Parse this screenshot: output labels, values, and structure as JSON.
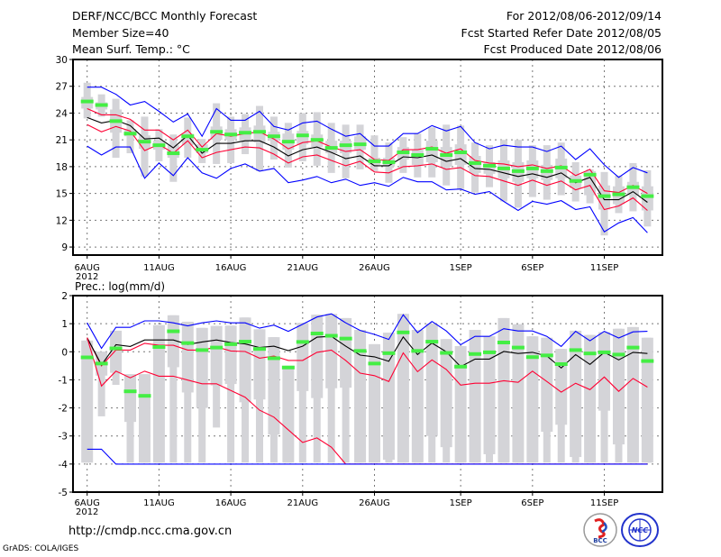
{
  "header": {
    "title": "DERF/NCC/BCC Monthly Forecast",
    "member_size": "Member Size=40",
    "variable": "Mean Surf. Temp.: °C",
    "period": "For 2012/08/06-2012/09/14",
    "started": "Fcst Started Refer Date 2012/08/05",
    "produced": "Fcst Produced Date 2012/08/06"
  },
  "footer": {
    "url": "http://cmdp.ncc.cma.gov.cn",
    "credit": "GrADS: COLA/IGES",
    "logos": [
      "BCC",
      "NCC"
    ]
  },
  "colors": {
    "max_min": "#0000ff",
    "spread": "#ff0033",
    "mean": "#000000",
    "marker": "#44ee44",
    "box": "#d4d4d8",
    "grid": "#777777"
  },
  "chart_data": [
    {
      "type": "line",
      "title": "Mean Surf. Temp.: °C",
      "ylim": [
        8.1,
        30
      ],
      "yticks": [
        "9",
        "12",
        "15",
        "18",
        "21",
        "24",
        "27",
        "30"
      ],
      "xticks": [
        {
          "day": 0,
          "label": "6AUG"
        },
        {
          "day": 5,
          "label": "11AUG"
        },
        {
          "day": 10,
          "label": "16AUG"
        },
        {
          "day": 15,
          "label": "21AUG"
        },
        {
          "day": 20,
          "label": "26AUG"
        },
        {
          "day": 26,
          "label": "1SEP"
        },
        {
          "day": 31,
          "label": "6SEP"
        },
        {
          "day": 36,
          "label": "11SEP"
        }
      ],
      "year_label": "2012",
      "grid": true,
      "series": [
        {
          "name": "max",
          "color": "#0000ff",
          "values": [
            26.9,
            26.9,
            26.1,
            24.9,
            25.3,
            24.2,
            23.0,
            23.9,
            21.4,
            24.5,
            23.2,
            23.2,
            24.2,
            22.5,
            22.1,
            22.9,
            23.1,
            22.2,
            21.4,
            21.7,
            20.3,
            20.3,
            21.7,
            21.7,
            22.6,
            22.0,
            22.5,
            20.7,
            20.0,
            20.4,
            20.2,
            20.2,
            19.7,
            20.3,
            18.8,
            20.0,
            18.2,
            16.8,
            17.9,
            17.3
          ]
        },
        {
          "name": "upper",
          "color": "#ff0033",
          "values": [
            24.5,
            23.8,
            23.8,
            23.3,
            22.1,
            22.1,
            21.0,
            22.1,
            20.2,
            21.7,
            21.4,
            21.7,
            21.9,
            21.1,
            20.0,
            20.7,
            20.9,
            20.2,
            19.7,
            19.9,
            18.8,
            18.7,
            19.9,
            19.9,
            20.2,
            19.5,
            20.0,
            18.7,
            18.4,
            18.3,
            18.0,
            18.2,
            17.8,
            18.1,
            17.0,
            17.7,
            15.3,
            15.1,
            15.9,
            15.0
          ]
        },
        {
          "name": "mean",
          "color": "#000000",
          "values": [
            23.5,
            22.9,
            23.2,
            22.6,
            21.1,
            21.2,
            20.1,
            21.5,
            19.5,
            20.6,
            20.6,
            20.9,
            20.9,
            20.2,
            19.2,
            19.9,
            20.2,
            19.6,
            18.9,
            19.2,
            18.1,
            18.1,
            19.1,
            19.0,
            19.3,
            18.6,
            18.9,
            17.8,
            17.7,
            17.3,
            16.9,
            17.2,
            16.8,
            17.3,
            16.2,
            16.8,
            14.3,
            14.3,
            15.2,
            14.0
          ]
        },
        {
          "name": "lower",
          "color": "#ff0033",
          "values": [
            22.7,
            21.9,
            22.5,
            22.0,
            19.8,
            20.5,
            19.5,
            20.9,
            19.0,
            19.6,
            19.9,
            20.2,
            20.1,
            19.4,
            18.4,
            19.1,
            19.3,
            18.7,
            18.1,
            18.6,
            17.4,
            17.3,
            18.0,
            18.1,
            18.3,
            17.7,
            17.9,
            17.0,
            16.9,
            16.4,
            15.9,
            16.5,
            15.9,
            16.4,
            15.4,
            15.9,
            13.2,
            13.6,
            14.5,
            13.1
          ]
        },
        {
          "name": "min",
          "color": "#0000ff",
          "values": [
            20.3,
            19.3,
            20.2,
            20.2,
            16.7,
            18.4,
            17.0,
            19.0,
            17.3,
            16.7,
            17.8,
            18.3,
            17.5,
            17.8,
            16.2,
            16.5,
            16.9,
            16.2,
            16.6,
            15.9,
            16.2,
            15.8,
            16.8,
            16.3,
            16.3,
            15.4,
            15.5,
            14.9,
            15.2,
            14.1,
            13.1,
            14.1,
            13.8,
            14.2,
            13.2,
            13.5,
            10.7,
            11.7,
            12.3,
            10.6
          ]
        }
      ],
      "markers": [
        25.3,
        24.9,
        23.1,
        21.7,
        20.8,
        20.4,
        19.5,
        21.4,
        19.9,
        21.9,
        21.6,
        21.8,
        21.9,
        21.4,
        20.8,
        21.5,
        21.0,
        20.1,
        20.4,
        20.5,
        18.6,
        18.5,
        19.6,
        19.3,
        20.0,
        19.3,
        19.6,
        18.4,
        18.1,
        17.8,
        17.5,
        17.8,
        17.5,
        17.9,
        16.4,
        17.1,
        14.7,
        14.9,
        15.7,
        14.7
      ],
      "boxes": [
        [
          27.4,
          25.8,
          24.5,
          23.4
        ],
        [
          26.1,
          25.2,
          24.4,
          23.6
        ],
        [
          25.6,
          24.4,
          21.8,
          19.0
        ],
        [
          23.2,
          22.2,
          21.4,
          19.5
        ],
        [
          23.6,
          21.5,
          20.0,
          16.9
        ],
        [
          22.2,
          20.9,
          19.9,
          18.6
        ],
        [
          21.6,
          20.4,
          19.0,
          16.3
        ],
        [
          23.5,
          21.7,
          20.4,
          19.0
        ],
        [
          21.1,
          20.5,
          19.5,
          18.4
        ],
        [
          25.1,
          22.5,
          21.0,
          18.3
        ],
        [
          23.6,
          22.2,
          21.0,
          18.4
        ],
        [
          23.9,
          22.4,
          20.9,
          19.4
        ],
        [
          24.8,
          22.6,
          20.7,
          17.5
        ],
        [
          23.6,
          21.9,
          20.9,
          18.8
        ],
        [
          22.9,
          21.7,
          19.9,
          17.9
        ],
        [
          24.0,
          22.0,
          20.5,
          18.6
        ],
        [
          24.1,
          21.6,
          20.2,
          18.1
        ],
        [
          22.9,
          20.9,
          19.5,
          17.3
        ],
        [
          22.7,
          20.9,
          19.5,
          16.7
        ],
        [
          22.7,
          21.4,
          19.9,
          17.7
        ],
        [
          21.5,
          19.0,
          18.2,
          17.5
        ],
        [
          20.7,
          19.0,
          18.0,
          16.2
        ],
        [
          21.3,
          20.2,
          18.8,
          17.3
        ],
        [
          21.7,
          19.9,
          18.2,
          16.8
        ],
        [
          22.4,
          20.9,
          18.5,
          16.8
        ],
        [
          22.7,
          20.2,
          18.0,
          15.9
        ],
        [
          22.6,
          20.5,
          18.2,
          15.5
        ],
        [
          20.7,
          19.2,
          17.3,
          15.1
        ],
        [
          20.4,
          18.5,
          17.2,
          15.7
        ],
        [
          21.0,
          18.7,
          16.7,
          14.1
        ],
        [
          21.0,
          18.5,
          16.3,
          13.4
        ],
        [
          20.4,
          18.7,
          16.7,
          14.6
        ],
        [
          20.4,
          18.2,
          16.5,
          14.3
        ],
        [
          20.7,
          18.9,
          16.7,
          14.8
        ],
        [
          18.5,
          17.0,
          15.6,
          14.1
        ],
        [
          17.7,
          17.5,
          14.8,
          13.9
        ],
        [
          17.4,
          15.9,
          13.2,
          10.3
        ],
        [
          17.0,
          15.8,
          13.8,
          12.8
        ],
        [
          18.4,
          16.3,
          14.8,
          13.0
        ],
        [
          17.6,
          15.8,
          13.1,
          11.3
        ]
      ]
    },
    {
      "type": "line",
      "title": "Prec.: log(mm/d)",
      "ylim": [
        -5,
        2
      ],
      "yticks": [
        "-5",
        "-4",
        "-3",
        "-2",
        "-1",
        "0",
        "1",
        "2"
      ],
      "xticks": [
        {
          "day": 0,
          "label": "6AUG"
        },
        {
          "day": 5,
          "label": "11AUG"
        },
        {
          "day": 10,
          "label": "16AUG"
        },
        {
          "day": 15,
          "label": "21AUG"
        },
        {
          "day": 20,
          "label": "26AUG"
        },
        {
          "day": 26,
          "label": "1SEP"
        },
        {
          "day": 31,
          "label": "6SEP"
        },
        {
          "day": 36,
          "label": "11SEP"
        }
      ],
      "year_label": "2012",
      "grid": true,
      "series": [
        {
          "name": "max",
          "color": "#0000ff",
          "values": [
            1.03,
            0.12,
            0.87,
            0.87,
            1.1,
            1.1,
            1.03,
            0.92,
            1.03,
            1.1,
            1.03,
            1.03,
            0.84,
            0.95,
            0.73,
            0.98,
            1.24,
            1.35,
            1.03,
            0.76,
            0.62,
            0.44,
            1.32,
            0.68,
            1.08,
            0.74,
            0.25,
            0.55,
            0.55,
            0.82,
            0.74,
            0.74,
            0.55,
            0.19,
            0.73,
            0.39,
            0.73,
            0.49,
            0.71,
            0.73
          ]
        },
        {
          "name": "upper",
          "color": "#ff0033",
          "values": [
            0.5,
            -0.5,
            0.06,
            0.06,
            0.3,
            0.23,
            0.23,
            0.06,
            0.06,
            0.17,
            0.03,
            0.01,
            -0.23,
            -0.15,
            -0.31,
            -0.31,
            -0.02,
            0.06,
            -0.31,
            -0.76,
            -0.85,
            -1.06,
            -0.04,
            -0.71,
            -0.29,
            -0.63,
            -1.19,
            -1.12,
            -1.12,
            -1.03,
            -1.09,
            -0.69,
            -1.06,
            -1.44,
            -1.12,
            -1.35,
            -0.9,
            -1.41,
            -0.95,
            -1.26
          ]
        },
        {
          "name": "mean",
          "color": "#000000",
          "values": [
            0.5,
            -0.47,
            0.25,
            0.19,
            0.42,
            0.42,
            0.42,
            0.26,
            0.35,
            0.42,
            0.33,
            0.28,
            0.15,
            0.2,
            0.04,
            0.2,
            0.52,
            0.55,
            0.2,
            -0.12,
            -0.18,
            -0.34,
            0.53,
            -0.1,
            0.31,
            0.0,
            -0.53,
            -0.26,
            -0.26,
            0.01,
            -0.06,
            -0.02,
            -0.15,
            -0.58,
            -0.1,
            -0.45,
            -0.02,
            -0.29,
            -0.02,
            -0.06
          ]
        },
        {
          "name": "lower",
          "color": "#ff0033",
          "values": [
            0.5,
            -1.22,
            -0.69,
            -0.93,
            -0.69,
            -0.87,
            -0.87,
            -1.01,
            -1.14,
            -1.14,
            -1.38,
            -1.62,
            -2.08,
            -2.33,
            -2.78,
            -3.23,
            -3.07,
            -3.4,
            -4,
            -4,
            -4,
            -4,
            -4,
            -4,
            -4,
            -4,
            -4,
            -4,
            -4,
            -4,
            -4,
            -4,
            -4,
            -4,
            -4,
            -4,
            -4,
            -4,
            -4,
            -4
          ]
        },
        {
          "name": "min",
          "color": "#0000ff",
          "values": [
            -3.47,
            -3.47,
            -4,
            -4,
            -4,
            -4,
            -4,
            -4,
            -4,
            -4,
            -4,
            -4,
            -4,
            -4,
            -4,
            -4,
            -4,
            -4,
            -4,
            -4,
            -4,
            -4,
            -4,
            -4,
            -4,
            -4,
            -4,
            -4,
            -4,
            -4,
            -4,
            -4,
            -4,
            -4,
            -4,
            -4,
            -4,
            -4,
            -4,
            -4
          ]
        }
      ],
      "markers": [
        -0.2,
        -0.42,
        0.12,
        -1.41,
        -1.57,
        0.17,
        0.73,
        0.31,
        0.06,
        0.15,
        0.27,
        0.36,
        0.1,
        -0.23,
        -0.56,
        0.35,
        0.65,
        0.57,
        0.47,
        0.03,
        -0.42,
        -0.05,
        0.69,
        0.03,
        0.36,
        -0.04,
        -0.53,
        -0.08,
        -0.02,
        0.33,
        0.15,
        -0.19,
        -0.13,
        -0.44,
        0.06,
        -0.06,
        -0.02,
        -0.1,
        0.15,
        -0.33
      ],
      "boxes": [
        [
          0.4,
          0.4,
          -3.95,
          -3.95
        ],
        [
          0.0,
          0.0,
          -0.85,
          -2.3
        ],
        [
          0.75,
          0.75,
          -0.75,
          -1.18
        ],
        [
          -0.8,
          -0.8,
          -2.5,
          -3.95
        ],
        [
          -0.8,
          -0.8,
          -3.95,
          -3.95
        ],
        [
          0.95,
          0.95,
          -3.95,
          -3.95
        ],
        [
          1.3,
          1.3,
          -0.55,
          -3.95
        ],
        [
          1.07,
          1.07,
          -1.45,
          -3.95
        ],
        [
          0.85,
          0.85,
          -2.0,
          -3.95
        ],
        [
          0.92,
          0.92,
          -1.2,
          -2.7
        ],
        [
          0.93,
          0.93,
          -1.15,
          -3.95
        ],
        [
          1.22,
          1.22,
          -1.8,
          -3.95
        ],
        [
          0.8,
          0.8,
          -1.7,
          -3.95
        ],
        [
          0.52,
          0.52,
          -2.95,
          -3.95
        ],
        [
          -0.5,
          -0.5,
          -3.95,
          -3.95
        ],
        [
          1.03,
          1.03,
          -1.4,
          -3.95
        ],
        [
          1.32,
          1.32,
          -1.65,
          -3.95
        ],
        [
          1.35,
          1.35,
          -1.3,
          -3.95
        ],
        [
          1.2,
          1.2,
          -1.28,
          -3.95
        ],
        [
          0.78,
          0.78,
          -3.95,
          -3.95
        ],
        [
          0.27,
          0.27,
          -3.95,
          -3.95
        ],
        [
          0.68,
          0.68,
          -3.85,
          -3.95
        ],
        [
          1.35,
          1.35,
          -3.95,
          -3.95
        ],
        [
          0.78,
          0.78,
          -3.95,
          -3.95
        ],
        [
          1.0,
          1.0,
          -3.0,
          -3.95
        ],
        [
          0.45,
          0.45,
          -3.4,
          -3.95
        ],
        [
          0.2,
          0.2,
          -3.95,
          -3.95
        ],
        [
          0.78,
          0.78,
          -3.95,
          -3.95
        ],
        [
          0.55,
          0.55,
          -3.65,
          -3.95
        ],
        [
          1.2,
          1.2,
          -3.95,
          -3.95
        ],
        [
          0.98,
          0.98,
          -3.95,
          -3.95
        ],
        [
          0.55,
          0.55,
          -3.95,
          -3.95
        ],
        [
          0.5,
          0.5,
          -2.85,
          -3.95
        ],
        [
          0.1,
          0.1,
          -2.6,
          -3.95
        ],
        [
          0.75,
          0.75,
          -3.75,
          -3.95
        ],
        [
          0.6,
          0.6,
          -3.95,
          -3.95
        ],
        [
          0.7,
          0.7,
          -2.1,
          -3.95
        ],
        [
          0.82,
          0.82,
          -3.3,
          -3.95
        ],
        [
          0.88,
          0.88,
          -3.95,
          -3.95
        ],
        [
          0.5,
          0.5,
          -3.95,
          -3.95
        ]
      ]
    }
  ]
}
